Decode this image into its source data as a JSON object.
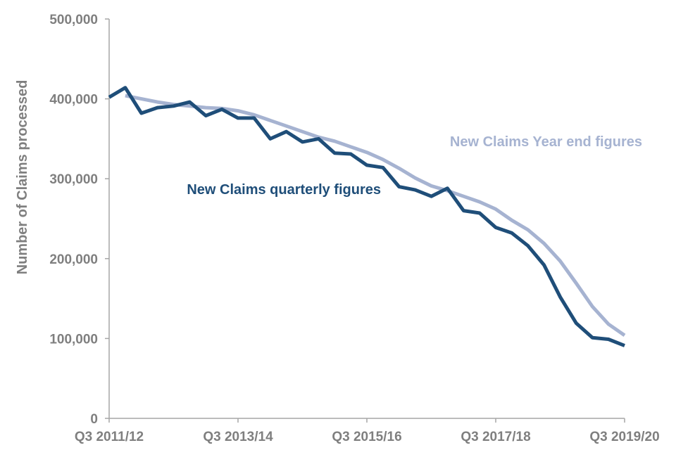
{
  "chart_data": {
    "type": "line",
    "title": "",
    "xlabel": "",
    "ylabel": "Number of Claims processed",
    "ylim": [
      0,
      500000
    ],
    "yticks": [
      0,
      100000,
      200000,
      300000,
      400000,
      500000
    ],
    "ytick_labels": [
      "0",
      "100,000",
      "200,000",
      "300,000",
      "400,000",
      "500,000"
    ],
    "x": [
      "Q3 2011/12",
      "Q4 2011/12",
      "Q1 2012/13",
      "Q2 2012/13",
      "Q3 2012/13",
      "Q4 2012/13",
      "Q1 2013/14",
      "Q2 2013/14",
      "Q3 2013/14",
      "Q4 2013/14",
      "Q1 2014/15",
      "Q2 2014/15",
      "Q3 2014/15",
      "Q4 2014/15",
      "Q1 2015/16",
      "Q2 2015/16",
      "Q3 2015/16",
      "Q4 2015/16",
      "Q1 2016/17",
      "Q2 2016/17",
      "Q3 2016/17",
      "Q4 2016/17",
      "Q1 2017/18",
      "Q2 2017/18",
      "Q3 2017/18",
      "Q4 2017/18",
      "Q1 2018/19",
      "Q2 2018/19",
      "Q3 2018/19",
      "Q4 2018/19",
      "Q1 2019/20",
      "Q2 2019/20",
      "Q3 2019/20"
    ],
    "xtick_labels": [
      "Q3 2011/12",
      "Q3 2013/14",
      "Q3 2015/16",
      "Q3 2017/18",
      "Q3 2019/20"
    ],
    "grid": false,
    "legend": "inline labels",
    "series": [
      {
        "name": "New Claims quarterly figures",
        "color": "#1f4e79",
        "values": [
          402000,
          414000,
          382000,
          389000,
          391000,
          396000,
          379000,
          387000,
          376000,
          376000,
          350000,
          359000,
          346000,
          350000,
          332000,
          331000,
          317000,
          314000,
          290000,
          286000,
          278000,
          288000,
          260000,
          257000,
          239000,
          232000,
          216000,
          192000,
          152000,
          119000,
          101000,
          99000,
          91000
        ]
      },
      {
        "name": "New Claims Year end figures",
        "color": "#a6b3d1",
        "values": [
          null,
          404000,
          400000,
          396000,
          393000,
          391000,
          389000,
          388000,
          385000,
          380000,
          373000,
          366000,
          359000,
          352000,
          347000,
          340000,
          333000,
          324000,
          313000,
          301000,
          291000,
          285000,
          278000,
          271000,
          262000,
          248000,
          236000,
          219000,
          197000,
          169000,
          140000,
          118000,
          104000
        ]
      }
    ]
  }
}
